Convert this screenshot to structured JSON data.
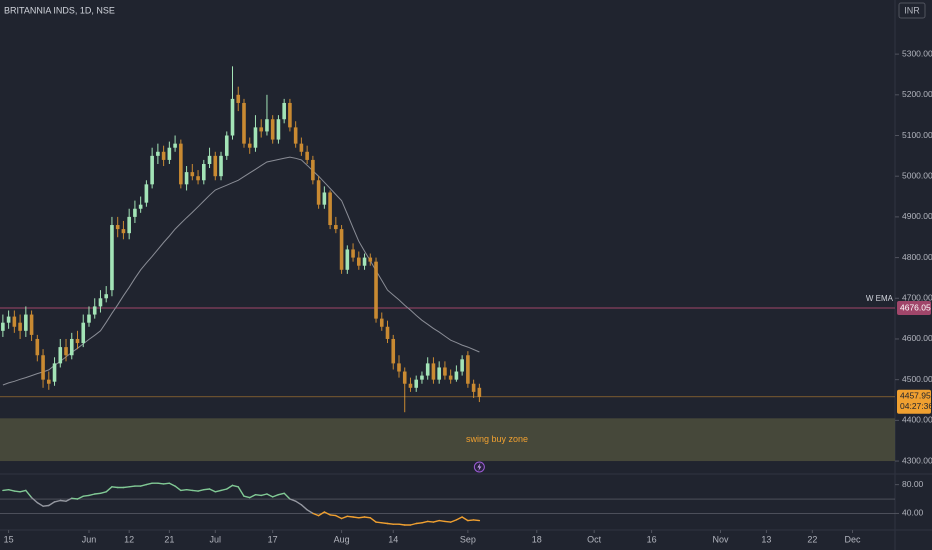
{
  "header": {
    "title": "BRITANNIA INDS, 1D, NSE",
    "currency": "INR"
  },
  "chart_data": {
    "type": "candlestick",
    "up_color": "#a3e4b7",
    "down_color": "#c98a32",
    "open": [
      4620,
      4640,
      4655,
      4640,
      4620,
      4660,
      4600,
      4560,
      4500,
      4495,
      4540,
      4580,
      4560,
      4600,
      4590,
      4640,
      4660,
      4680,
      4700,
      4720,
      4880,
      4870,
      4860,
      4900,
      4920,
      4935,
      4980,
      5050,
      5060,
      5040,
      5070,
      5080,
      4980,
      5010,
      5000,
      4990,
      5030,
      5050,
      5000,
      5050,
      5100,
      5200,
      5180,
      5080,
      5070,
      5120,
      5110,
      5140,
      5090,
      5140,
      5180,
      5120,
      5080,
      5060,
      5040,
      4990,
      4930,
      4960,
      4880,
      4870,
      4770,
      4820,
      4800,
      4780,
      4800,
      4790,
      4650,
      4630,
      4600,
      4540,
      4520,
      4490,
      4480,
      4500,
      4510,
      4540,
      4500,
      4530,
      4510,
      4500,
      4520,
      4560,
      4490,
      4480
    ],
    "high": [
      4660,
      4670,
      4670,
      4660,
      4680,
      4670,
      4610,
      4575,
      4520,
      4555,
      4600,
      4600,
      4615,
      4620,
      4660,
      4680,
      4700,
      4720,
      4730,
      4900,
      4900,
      4890,
      4920,
      4940,
      4950,
      4990,
      5070,
      5080,
      5075,
      5085,
      5100,
      5090,
      5025,
      5030,
      5015,
      5040,
      5070,
      5060,
      5060,
      5110,
      5270,
      5220,
      5190,
      5095,
      5150,
      5140,
      5200,
      5150,
      5150,
      5190,
      5190,
      5135,
      5095,
      5075,
      5050,
      5000,
      4975,
      4965,
      4900,
      4880,
      4830,
      4835,
      4815,
      4810,
      4810,
      4800,
      4665,
      4645,
      4610,
      4560,
      4530,
      4505,
      4510,
      4520,
      4555,
      4555,
      4545,
      4545,
      4525,
      4535,
      4560,
      4570,
      4500,
      4490
    ],
    "low": [
      4605,
      4625,
      4615,
      4600,
      4605,
      4595,
      4545,
      4480,
      4475,
      4485,
      4530,
      4545,
      4550,
      4575,
      4580,
      4630,
      4650,
      4665,
      4690,
      4705,
      4850,
      4845,
      4845,
      4885,
      4910,
      4925,
      4970,
      5030,
      5025,
      5030,
      5060,
      4970,
      4965,
      4990,
      4980,
      4980,
      5020,
      4990,
      4990,
      5040,
      5090,
      5160,
      5070,
      5055,
      5060,
      5095,
      5100,
      5080,
      5080,
      5130,
      5110,
      5070,
      5050,
      5030,
      4980,
      4920,
      4920,
      4870,
      4860,
      4760,
      4760,
      4790,
      4770,
      4770,
      4780,
      4640,
      4620,
      4590,
      4525,
      4505,
      4420,
      4470,
      4470,
      4490,
      4500,
      4490,
      4490,
      4500,
      4490,
      4495,
      4510,
      4480,
      4455,
      4445
    ],
    "close": [
      4640,
      4655,
      4630,
      4620,
      4660,
      4610,
      4560,
      4500,
      4490,
      4540,
      4580,
      4560,
      4600,
      4590,
      4640,
      4660,
      4680,
      4700,
      4710,
      4880,
      4870,
      4860,
      4900,
      4920,
      4930,
      4980,
      5050,
      5060,
      5040,
      5070,
      5080,
      4980,
      5010,
      5000,
      4990,
      5030,
      5050,
      5000,
      5050,
      5100,
      5190,
      5180,
      5080,
      5070,
      5120,
      5110,
      5140,
      5090,
      5140,
      5180,
      5120,
      5080,
      5060,
      5040,
      4990,
      4930,
      4960,
      4880,
      4870,
      4770,
      4820,
      4800,
      4780,
      4800,
      4790,
      4650,
      4630,
      4600,
      4540,
      4520,
      4490,
      4480,
      4500,
      4510,
      4540,
      4500,
      4530,
      4510,
      4500,
      4520,
      4550,
      4490,
      4470,
      4457.95
    ],
    "xlim": [
      -0.5,
      155.4
    ],
    "xticks": [
      {
        "value": 1,
        "label": "15"
      },
      {
        "value": 15,
        "label": "Jun"
      },
      {
        "value": 22,
        "label": "12"
      },
      {
        "value": 29,
        "label": "21"
      },
      {
        "value": 37,
        "label": "Jul"
      },
      {
        "value": 47,
        "label": "17"
      },
      {
        "value": 59,
        "label": "Aug"
      },
      {
        "value": 68,
        "label": "14"
      },
      {
        "value": 81,
        "label": "Sep"
      },
      {
        "value": 93,
        "label": "18"
      },
      {
        "value": 103,
        "label": "Oct"
      },
      {
        "value": 113,
        "label": "16"
      },
      {
        "value": 125,
        "label": "Nov"
      },
      {
        "value": 133,
        "label": "13"
      },
      {
        "value": 141,
        "label": "22"
      },
      {
        "value": 148,
        "label": "Dec"
      }
    ],
    "ylim": [
      4278,
      5433
    ],
    "yticks": [
      {
        "value": 5300,
        "label": "5300.00"
      },
      {
        "value": 5200,
        "label": "5200.00"
      },
      {
        "value": 5100,
        "label": "5100.00"
      },
      {
        "value": 5000,
        "label": "5000.00"
      },
      {
        "value": 4900,
        "label": "4900.00"
      },
      {
        "value": 4800,
        "label": "4800.00"
      },
      {
        "value": 4700,
        "label": "4700.00"
      },
      {
        "value": 4600,
        "label": "4600.00"
      },
      {
        "value": 4500,
        "label": "4500.00"
      },
      {
        "value": 4400,
        "label": "4400.00"
      },
      {
        "value": 4300,
        "label": "4300.00"
      }
    ],
    "ema": {
      "color": "#8a8d96",
      "values": [
        4487,
        4492,
        4496,
        4501,
        4505,
        4510,
        4515,
        4519,
        4524,
        4535,
        4545,
        4556,
        4567,
        4577,
        4588,
        4599,
        4609,
        4620,
        4641,
        4663,
        4684,
        4706,
        4727,
        4749,
        4770,
        4787,
        4803,
        4820,
        4837,
        4853,
        4870,
        4884,
        4898,
        4911,
        4925,
        4939,
        4953,
        4966,
        4972,
        4978,
        4984,
        4990,
        4999,
        5008,
        5017,
        5026,
        5035,
        5038,
        5041,
        5044,
        5047,
        5044,
        5040,
        5027,
        5013,
        5000,
        4985,
        4970,
        4955,
        4940,
        4907,
        4873,
        4840,
        4816,
        4792,
        4768,
        4744,
        4720,
        4708,
        4696,
        4683,
        4671,
        4658,
        4646,
        4636,
        4626,
        4617,
        4607,
        4597,
        4591,
        4585,
        4580,
        4574,
        4568
      ]
    },
    "wema": {
      "name": "W EMA",
      "value": 4676.05,
      "color": "#a0466a"
    },
    "last_price_color": "#f0a030",
    "countdown": "04:27:36",
    "zone": {
      "label": "swing buy zone",
      "range": [
        4300,
        4405
      ],
      "color": "#4a4c3c",
      "label_color": "#f0a030"
    },
    "indicator": {
      "type": "line",
      "values": [
        72,
        73,
        71,
        70,
        72,
        62,
        55,
        50,
        51,
        56,
        58,
        57,
        61,
        60,
        64,
        65,
        67,
        68,
        70,
        77,
        76,
        76,
        77,
        78,
        78,
        80,
        82,
        82,
        81,
        82,
        78,
        72,
        73,
        72,
        71,
        73,
        74,
        70,
        72,
        74,
        79,
        77,
        64,
        62,
        66,
        65,
        67,
        63,
        66,
        68,
        60,
        57,
        52,
        45,
        40,
        37,
        42,
        38,
        37,
        33,
        36,
        35,
        34,
        35,
        34,
        28,
        27,
        26,
        25,
        25,
        24,
        24,
        26,
        27,
        29,
        28,
        30,
        29,
        28,
        31,
        35,
        30,
        31,
        30
      ],
      "ylim": [
        17,
        92
      ],
      "yticks": [
        {
          "value": 80,
          "label": "80.00"
        },
        {
          "value": 40,
          "label": "40.00"
        }
      ],
      "levels": [
        60,
        40
      ],
      "upper_color": "#81c995",
      "mid_color": "#9598a1",
      "lower_color": "#f0a030"
    }
  }
}
